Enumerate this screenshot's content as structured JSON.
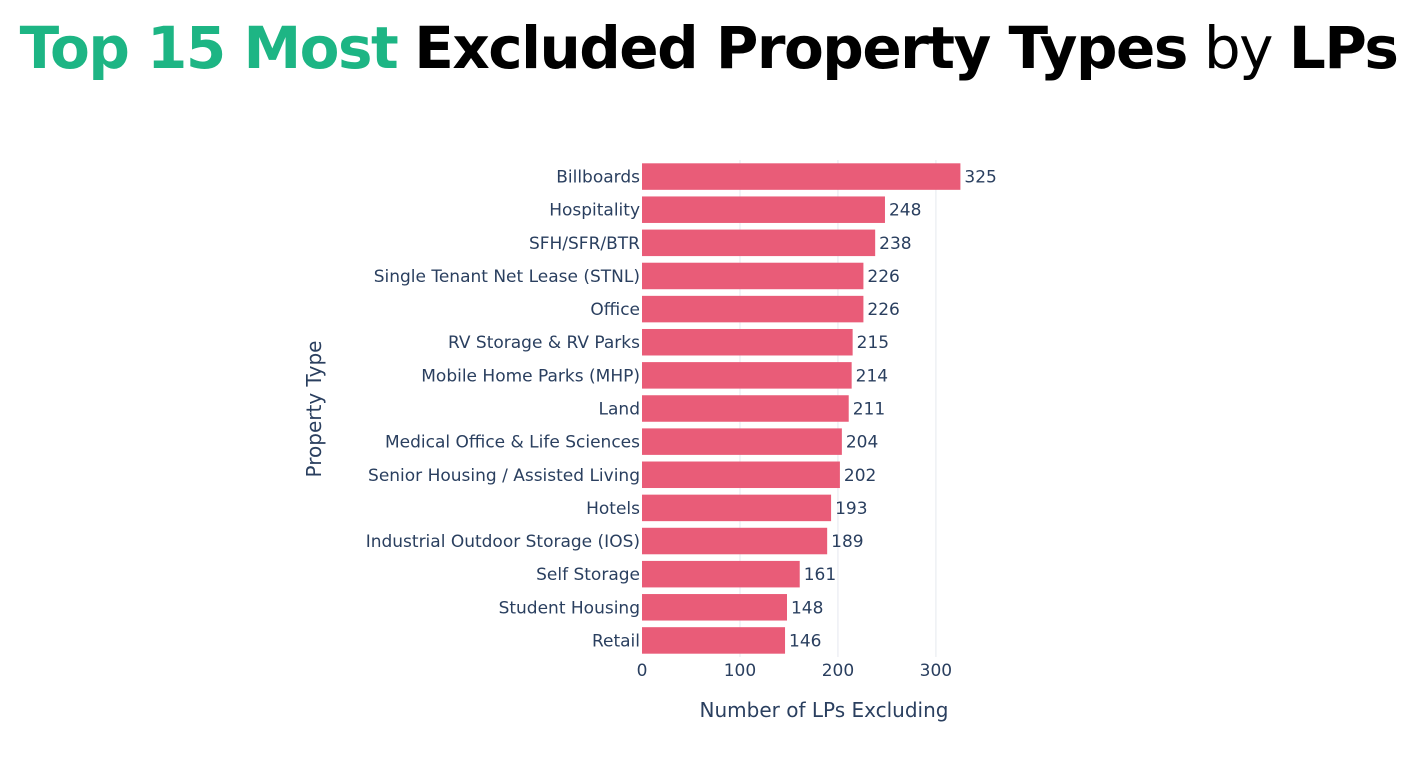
{
  "title": {
    "part1": "Top 15 Most",
    "part2": "Excluded Property Types",
    "part3": "by",
    "part4": "LPs"
  },
  "colors": {
    "title_accent": "#1db584",
    "bar": "#e95c78",
    "grid": "#e5e8ee",
    "text": "#2a3f5f"
  },
  "chart_data": {
    "type": "bar",
    "orientation": "horizontal",
    "categories": [
      "Billboards",
      "Hospitality",
      "SFH/SFR/BTR",
      "Single Tenant Net Lease (STNL)",
      "Office",
      "RV Storage & RV Parks",
      "Mobile Home Parks (MHP)",
      "Land",
      "Medical Office & Life Sciences",
      "Senior Housing / Assisted Living",
      "Hotels",
      "Industrial Outdoor Storage (IOS)",
      "Self Storage",
      "Student Housing",
      "Retail"
    ],
    "values": [
      325,
      248,
      238,
      226,
      226,
      215,
      214,
      211,
      204,
      202,
      193,
      189,
      161,
      148,
      146
    ],
    "xlabel": "Number of LPs Excluding",
    "ylabel": "Property Type",
    "xlim": [
      0,
      345
    ],
    "xticks": [
      0,
      100,
      200,
      300
    ],
    "grid": true,
    "data_labels": true
  }
}
